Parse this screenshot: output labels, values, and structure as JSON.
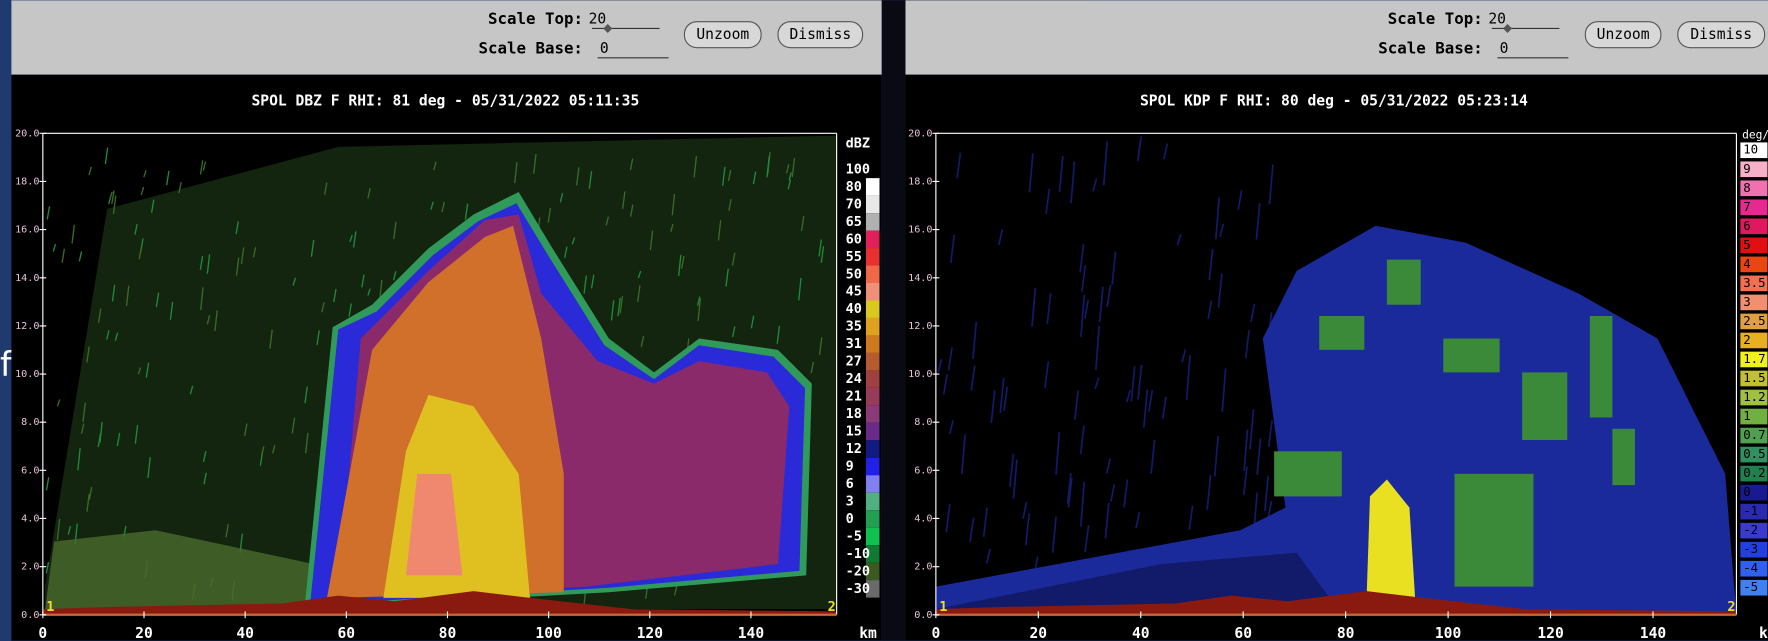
{
  "background_text": "f",
  "panels": [
    {
      "scale_top_label": "Scale Top:",
      "scale_top_value": "20",
      "scale_base_label": "Scale Base:",
      "scale_base_value": "0",
      "buttons": [
        "Unzoom",
        "Dismiss"
      ],
      "title": "SPOL DBZ F  RHI: 81 deg  -  05/31/2022 05:11:35",
      "y_ticks": [
        "0.0",
        "2.0",
        "4.0",
        "6.0",
        "8.0",
        "10.0",
        "12.0",
        "14.0",
        "16.0",
        "18.0",
        "20.0"
      ],
      "x_ticks": [
        "0",
        "20",
        "40",
        "60",
        "80",
        "100",
        "120",
        "140"
      ],
      "x_unit": "km",
      "markers": [
        "1",
        "2"
      ],
      "legend_unit": "dBZ",
      "legend": [
        {
          "label": "100",
          "color": "#000000"
        },
        {
          "label": "80",
          "color": "#ffffff"
        },
        {
          "label": "70",
          "color": "#e8e8e8"
        },
        {
          "label": "65",
          "color": "#b0b0b0"
        },
        {
          "label": "60",
          "color": "#e0205a"
        },
        {
          "label": "55",
          "color": "#e83030"
        },
        {
          "label": "50",
          "color": "#f06848"
        },
        {
          "label": "45",
          "color": "#f09078"
        },
        {
          "label": "40",
          "color": "#d8c820"
        },
        {
          "label": "35",
          "color": "#e0a020"
        },
        {
          "label": "31",
          "color": "#d07820"
        },
        {
          "label": "27",
          "color": "#b85a30"
        },
        {
          "label": "24",
          "color": "#a04040"
        },
        {
          "label": "21",
          "color": "#983a5a"
        },
        {
          "label": "18",
          "color": "#8a3a78"
        },
        {
          "label": "15",
          "color": "#6a2a8a"
        },
        {
          "label": "12",
          "color": "#101a80"
        },
        {
          "label": "9",
          "color": "#2020e8"
        },
        {
          "label": "6",
          "color": "#8080f0"
        },
        {
          "label": "3",
          "color": "#50b080"
        },
        {
          "label": "0",
          "color": "#20a050"
        },
        {
          "label": "-5",
          "color": "#10c050"
        },
        {
          "label": "-10",
          "color": "#107a30"
        },
        {
          "label": "-20",
          "color": "#3a5a20"
        },
        {
          "label": "-30",
          "color": "#6a6a6a"
        }
      ]
    },
    {
      "scale_top_label": "Scale Top:",
      "scale_top_value": "20",
      "scale_base_label": "Scale Base:",
      "scale_base_value": "0",
      "buttons": [
        "Unzoom",
        "Dismiss"
      ],
      "title": "SPOL KDP F  RHI: 80 deg  -  05/31/2022 05:23:14",
      "y_ticks": [
        "0.0",
        "2.0",
        "4.0",
        "6.0",
        "8.0",
        "10.0",
        "12.0",
        "14.0",
        "16.0",
        "18.0",
        "20.0"
      ],
      "x_ticks": [
        "0",
        "20",
        "40",
        "60",
        "80",
        "100",
        "120",
        "140"
      ],
      "x_unit": "km",
      "markers": [
        "1",
        "2"
      ],
      "legend_unit": "deg/",
      "legend": [
        {
          "label": "10",
          "color": "#ffffff"
        },
        {
          "label": "9",
          "color": "#f8b0c8"
        },
        {
          "label": "8",
          "color": "#f070b0"
        },
        {
          "label": "7",
          "color": "#e82890"
        },
        {
          "label": "6",
          "color": "#e01860"
        },
        {
          "label": "5",
          "color": "#e01010"
        },
        {
          "label": "4",
          "color": "#e84810"
        },
        {
          "label": "3.5",
          "color": "#f07050"
        },
        {
          "label": "3",
          "color": "#f09070"
        },
        {
          "label": "2.5",
          "color": "#e0a040"
        },
        {
          "label": "2",
          "color": "#e8b020"
        },
        {
          "label": "1.7",
          "color": "#f0f020"
        },
        {
          "label": "1.5",
          "color": "#c0c030"
        },
        {
          "label": "1.2",
          "color": "#a0c040"
        },
        {
          "label": "1",
          "color": "#70b040"
        },
        {
          "label": "0.7",
          "color": "#50a050"
        },
        {
          "label": "0.5",
          "color": "#309060"
        },
        {
          "label": "0.2",
          "color": "#208050"
        },
        {
          "label": "0",
          "color": "#1a1a90"
        },
        {
          "label": "-1",
          "color": "#2a2ab0"
        },
        {
          "label": "-2",
          "color": "#3a3ad0"
        },
        {
          "label": "-3",
          "color": "#2040e0"
        },
        {
          "label": "-4",
          "color": "#3060f0"
        },
        {
          "label": "-5",
          "color": "#4080f0"
        }
      ]
    }
  ]
}
